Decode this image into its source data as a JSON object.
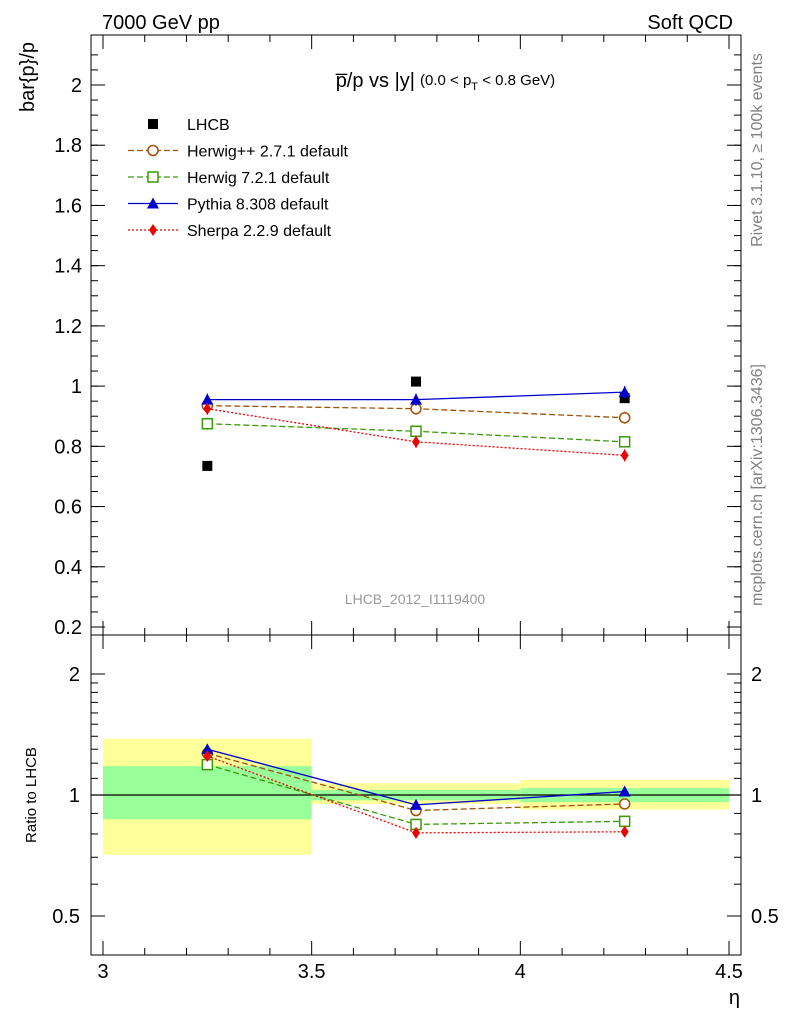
{
  "header": {
    "left": "7000 GeV pp",
    "right": "Soft QCD"
  },
  "side_labels": {
    "rivet": "Rivet 3.1.10, ≥ 100k events",
    "mcplots": "mcplots.cern.ch [arXiv:1306.3436]"
  },
  "colors": {
    "data": "#000000",
    "herwigpp": "#a0520a",
    "herwig7": "#3c9a0a",
    "pythia": "#0000cc",
    "sherpa": "#ee0000",
    "band_inner": "#99ff99",
    "band_outer": "#ffff99"
  },
  "chart_data": [
    {
      "type": "line",
      "title_main": "p̅/p vs |y|",
      "title_sub": "(0.0 < p",
      "title_sub_index": "T",
      "title_sub_end": " < 0.8 GeV)",
      "ylabel": "bar{p}/p",
      "watermark": "LHCB_2012_I1119400",
      "x": [
        3.25,
        3.75,
        4.25
      ],
      "xlim": [
        3.0,
        4.5
      ],
      "ylim": [
        0.19,
        2.17
      ],
      "yticks": [
        0.2,
        0.4,
        0.6,
        0.8,
        1.0,
        1.2,
        1.4,
        1.6,
        1.8,
        2.0
      ],
      "ytick_labels": [
        "0.2",
        "0.4",
        "0.6",
        "0.8",
        "1",
        "1.2",
        "1.4",
        "1.6",
        "1.8",
        "2"
      ],
      "legend_position": "top-left",
      "series": [
        {
          "name": "LHCB",
          "key": "data",
          "marker": "square-filled",
          "style": "none",
          "values": [
            0.735,
            1.015,
            0.96
          ],
          "errors": [
            0,
            0,
            0
          ]
        },
        {
          "name": "Herwig++ 2.7.1 default",
          "key": "herwigpp",
          "marker": "circle-open",
          "style": "dashed",
          "values": [
            0.935,
            0.925,
            0.895
          ],
          "errors": [
            0.015,
            0.02,
            0.02
          ]
        },
        {
          "name": "Herwig 7.2.1 default",
          "key": "herwig7",
          "marker": "square-open",
          "style": "dashed",
          "values": [
            0.875,
            0.85,
            0.815
          ],
          "errors": [
            0.02,
            0.015,
            0.015
          ]
        },
        {
          "name": "Pythia 8.308 default",
          "key": "pythia",
          "marker": "triangle-filled",
          "style": "solid",
          "values": [
            0.955,
            0.955,
            0.98
          ],
          "errors": [
            0.02,
            0.02,
            0.02
          ]
        },
        {
          "name": "Sherpa 2.2.9 default",
          "key": "sherpa",
          "marker": "diamond-filled",
          "style": "dotted",
          "values": [
            0.925,
            0.815,
            0.77
          ],
          "errors": [
            0.02,
            0.02,
            0.02
          ]
        }
      ]
    },
    {
      "type": "line",
      "ylabel": "Ratio to LHCB",
      "xlabel": "η",
      "x": [
        3.25,
        3.75,
        4.25
      ],
      "xlim": [
        3.0,
        4.5
      ],
      "ylim": [
        0.5,
        2.0
      ],
      "yscale": "log",
      "xticks": [
        3.0,
        3.5,
        4.0,
        4.5
      ],
      "xtick_labels": [
        "3",
        "3.5",
        "4",
        "4.5"
      ],
      "yticks": [
        0.5,
        1.0,
        2.0
      ],
      "ytick_labels": [
        "0.5",
        "1",
        "2"
      ],
      "bands": [
        {
          "x0": 3.0,
          "x1": 3.5,
          "inner": [
            0.87,
            1.18
          ],
          "outer": [
            0.71,
            1.38
          ]
        },
        {
          "x0": 3.5,
          "x1": 4.0,
          "inner": [
            0.97,
            1.03
          ],
          "outer": [
            0.95,
            1.07
          ]
        },
        {
          "x0": 4.0,
          "x1": 4.5,
          "inner": [
            0.96,
            1.04
          ],
          "outer": [
            0.92,
            1.09
          ]
        }
      ],
      "series": [
        {
          "name": "Herwig++ 2.7.1 default",
          "key": "herwigpp",
          "marker": "circle-open",
          "style": "dashed",
          "values": [
            1.27,
            0.915,
            0.95
          ],
          "errors": [
            0.02,
            0.015,
            0.01
          ]
        },
        {
          "name": "Herwig 7.2.1 default",
          "key": "herwig7",
          "marker": "square-open",
          "style": "dashed",
          "values": [
            1.19,
            0.845,
            0.86
          ],
          "errors": [
            0.02,
            0.012,
            0.012
          ]
        },
        {
          "name": "Pythia 8.308 default",
          "key": "pythia",
          "marker": "triangle-filled",
          "style": "solid",
          "values": [
            1.3,
            0.945,
            1.02
          ],
          "errors": [
            0.02,
            0.015,
            0.012
          ]
        },
        {
          "name": "Sherpa 2.2.9 default",
          "key": "sherpa",
          "marker": "diamond-filled",
          "style": "dotted",
          "values": [
            1.25,
            0.805,
            0.81
          ],
          "errors": [
            0.025,
            0.02,
            0.02
          ]
        }
      ]
    }
  ]
}
